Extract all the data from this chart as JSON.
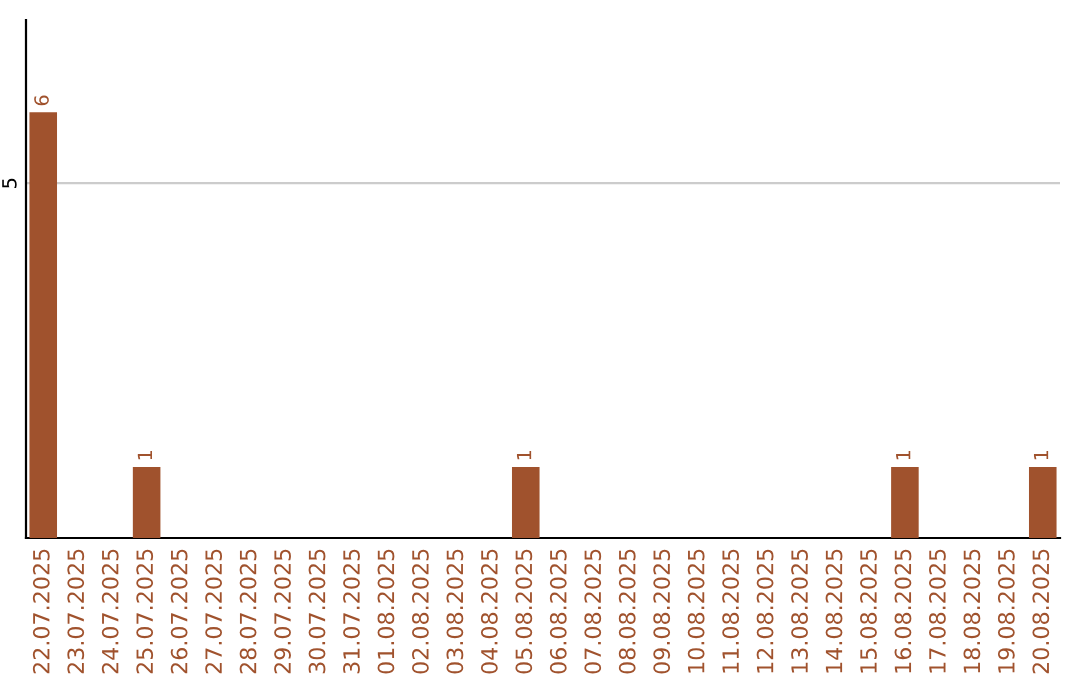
{
  "chart_data": {
    "type": "bar",
    "categories": [
      "22.07.2025",
      "23.07.2025",
      "24.07.2025",
      "25.07.2025",
      "26.07.2025",
      "27.07.2025",
      "28.07.2025",
      "29.07.2025",
      "30.07.2025",
      "31.07.2025",
      "01.08.2025",
      "02.08.2025",
      "03.08.2025",
      "04.08.2025",
      "05.08.2025",
      "06.08.2025",
      "07.08.2025",
      "08.08.2025",
      "09.08.2025",
      "10.08.2025",
      "11.08.2025",
      "12.08.2025",
      "13.08.2025",
      "14.08.2025",
      "15.08.2025",
      "16.08.2025",
      "17.08.2025",
      "18.08.2025",
      "19.08.2025",
      "20.08.2025"
    ],
    "values": [
      6,
      0,
      0,
      1,
      0,
      0,
      0,
      0,
      0,
      0,
      0,
      0,
      0,
      0,
      1,
      0,
      0,
      0,
      0,
      0,
      0,
      0,
      0,
      0,
      0,
      1,
      0,
      0,
      0,
      1
    ],
    "value_labels": [
      "6",
      null,
      null,
      "1",
      null,
      null,
      null,
      null,
      null,
      null,
      null,
      null,
      null,
      null,
      "1",
      null,
      null,
      null,
      null,
      null,
      null,
      null,
      null,
      null,
      null,
      "1",
      null,
      null,
      null,
      "1"
    ],
    "color": "#a0522d",
    "ylim": [
      0,
      7.3
    ],
    "yticks": [
      5
    ],
    "grid": "y"
  }
}
